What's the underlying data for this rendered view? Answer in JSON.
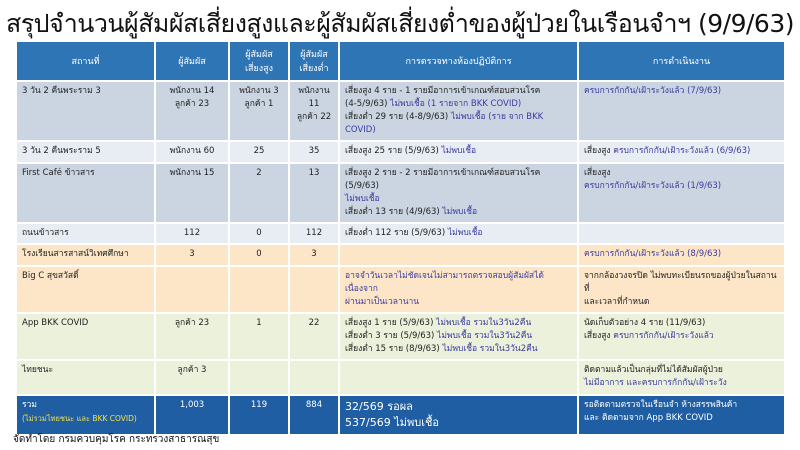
{
  "title": "สรุปจำนวนผู้สัมผัสเสี่ยงสูงและผู้สัมผัสเสี่ยงต่ำของผู้ป่วยในเรือนจำฯ (9/9/63)",
  "headers": [
    "สถานที่",
    "ผู้สัมผัส",
    "ผู้สัมผัส\nเสี่ยงสูง",
    "ผู้สัมผัส\nเสี่ยงต่ำ",
    "การตรวจทางห้องปฏิบัติการ",
    "การดำเนินงาน"
  ],
  "colors": {
    "header": "#2e75b6",
    "total": "#1f5ea3",
    "link_text": "#3b3ba0",
    "total_highlight": "#f3e14a"
  },
  "rows": [
    {
      "style": "blue",
      "height": 56,
      "place": "3 วัน 2 คืนพระราม 3",
      "contacts": "พนักงาน 14\nลูกค้า 23",
      "high": "พนักงาน 3\nลูกค้า 1",
      "low": "พนักงาน\n11\nลูกค้า 22",
      "lab": [
        [
          {
            "t": "เสี่ยงสูง 4 ราย - 1 รายมีอาการเข้าเกณฑ์สอบสวนโรค",
            "c": ""
          }
        ],
        [
          {
            "t": "(4-5/9/63) ",
            "c": ""
          },
          {
            "t": "ไม่พบเชื้อ (1 รายจาก BKK COVID)",
            "c": "b"
          }
        ],
        [
          {
            "t": "เสี่ยงต่ำ 29 ราย (4-8/9/63) ",
            "c": ""
          },
          {
            "t": "ไม่พบเชื้อ (ราย จาก BKK COVID)",
            "c": "b"
          }
        ]
      ],
      "action": [
        [
          {
            "t": "ครบการกักกัน/เฝ้าระวังแล้ว (7/9/63)",
            "c": "b"
          }
        ]
      ]
    },
    {
      "style": "light",
      "height": 20,
      "place": "3 วัน 2 คืนพระราม 5",
      "contacts": "พนักงาน 60",
      "high": "25",
      "low": "35",
      "lab": [
        [
          {
            "t": "เสี่ยงสูง 25 ราย (5/9/63) ",
            "c": ""
          },
          {
            "t": "ไม่พบเชื้อ",
            "c": "b"
          }
        ]
      ],
      "action": [
        [
          {
            "t": "เสี่ยงสูง ",
            "c": ""
          },
          {
            "t": "ครบการกักกัน/เฝ้าระวังแล้ว (6/9/63)",
            "c": "b"
          }
        ]
      ]
    },
    {
      "style": "blue",
      "height": 53,
      "place": "First Café ข้าวสาร",
      "contacts": "พนักงาน 15",
      "high": "2",
      "low": "13",
      "lab": [
        [
          {
            "t": "เสี่ยงสูง 2 ราย - 2 รายมีอาการเข้าเกณฑ์สอบสวนโรค (5/9/63)",
            "c": ""
          }
        ],
        [
          {
            "t": "ไม่พบเชื้อ",
            "c": "b"
          }
        ],
        [
          {
            "t": "เสี่ยงต่ำ 13 ราย (4/9/63) ",
            "c": ""
          },
          {
            "t": "ไม่พบเชื้อ",
            "c": "b"
          }
        ]
      ],
      "action": [
        [
          {
            "t": "เสี่ยงสูง",
            "c": ""
          }
        ],
        [
          {
            "t": "ครบการกักกัน/เฝ้าระวังแล้ว (1/9/63)",
            "c": "b"
          }
        ]
      ]
    },
    {
      "style": "light",
      "height": 18,
      "place": "ถนนข้าวสาร",
      "contacts": "112",
      "high": "0",
      "low": "112",
      "lab": [
        [
          {
            "t": "เสี่ยงต่ำ 112 ราย (5/9/63) ",
            "c": ""
          },
          {
            "t": "ไม่พบเชื้อ",
            "c": "b"
          }
        ]
      ],
      "action": []
    },
    {
      "style": "orange",
      "height": 20,
      "place": "โรงเรียนสารสาสน์วิเทศศึกษา",
      "contacts": "3",
      "high": "0",
      "low": "3",
      "lab": [],
      "action": [
        [
          {
            "t": "ครบการกักกัน/เฝ้าระวังแล้ว (8/9/63)",
            "c": "b"
          }
        ]
      ]
    },
    {
      "style": "orange",
      "height": 32,
      "place": "Big C สุขสวัสดิ์",
      "contacts": "",
      "high": "",
      "low": "",
      "lab": [
        [
          {
            "t": "อาจจำวันเวลาไม่ชัดเจนไม่สามารถตรวจสอบผู้สัมผัสได้ เนื่องจาก",
            "c": "b"
          }
        ],
        [
          {
            "t": "ผ่านมาเป็นเวลานาน",
            "c": "b"
          }
        ]
      ],
      "action": [
        [
          {
            "t": "จากกล้องวงจรปิด ไม่พบทะเบียนรถของผู้ป่วยในสถานที่",
            "c": ""
          }
        ],
        [
          {
            "t": "และเวลาที่กำหนด",
            "c": ""
          }
        ]
      ]
    },
    {
      "style": "green",
      "height": 45,
      "place": "App BKK COVID",
      "contacts": "ลูกค้า 23",
      "high": "1",
      "low": "22",
      "lab": [
        [
          {
            "t": "เสี่ยงสูง 1 ราย (5/9/63) ",
            "c": ""
          },
          {
            "t": "ไม่พบเชื้อ รวมใน3วัน2คืน",
            "c": "b"
          }
        ],
        [
          {
            "t": "เสี่ยงต่ำ 3 ราย (5/9/63) ",
            "c": ""
          },
          {
            "t": "ไม่พบเชื้อ รวมใน3วัน2คืน",
            "c": "b"
          }
        ],
        [
          {
            "t": "เสี่ยงต่ำ 15 ราย (8/9/63) ",
            "c": ""
          },
          {
            "t": "ไม่พบเชื้อ รวมใน3วัน2คืน",
            "c": "b"
          }
        ]
      ],
      "action": [
        [
          {
            "t": "นัดเก็บตัวอย่าง 4 ราย (11/9/63)",
            "c": ""
          }
        ],
        [
          {
            "t": "เสี่ยงสูง ",
            "c": ""
          },
          {
            "t": "ครบการกักกัน/เฝ้าระวังแล้ว",
            "c": "b"
          }
        ]
      ]
    },
    {
      "style": "green",
      "height": 33,
      "place": "ไทยชนะ",
      "contacts": "ลูกค้า 3",
      "high": "",
      "low": "",
      "lab": [],
      "action": [
        [
          {
            "t": "ติดตามแล้วเป็นกลุ่มที่ไม่ได้สัมผัสผู้ป่วย",
            "c": ""
          }
        ],
        [
          {
            "t": "ไม่มีอาการ และครบการกักกัน/เฝ้าระวัง",
            "c": "b"
          }
        ]
      ]
    }
  ],
  "total": {
    "label": "รวม",
    "note": "(ไม่รวมไทยชนะ และ BKK  COVID)",
    "contacts": "1,003",
    "high": "119",
    "low": "884",
    "lab": [
      "32/569 รอผล",
      "537/569 ไม่พบเชื้อ"
    ],
    "action": [
      "รอติดตามตรวจในเรือนจำ ห้างสรรพสินค้า",
      "และ ติดตามจาก App BKK COVID"
    ]
  },
  "footer": "จัดทำโดย กรมควบคุมโรค กระทรวงสาธารณสุข"
}
